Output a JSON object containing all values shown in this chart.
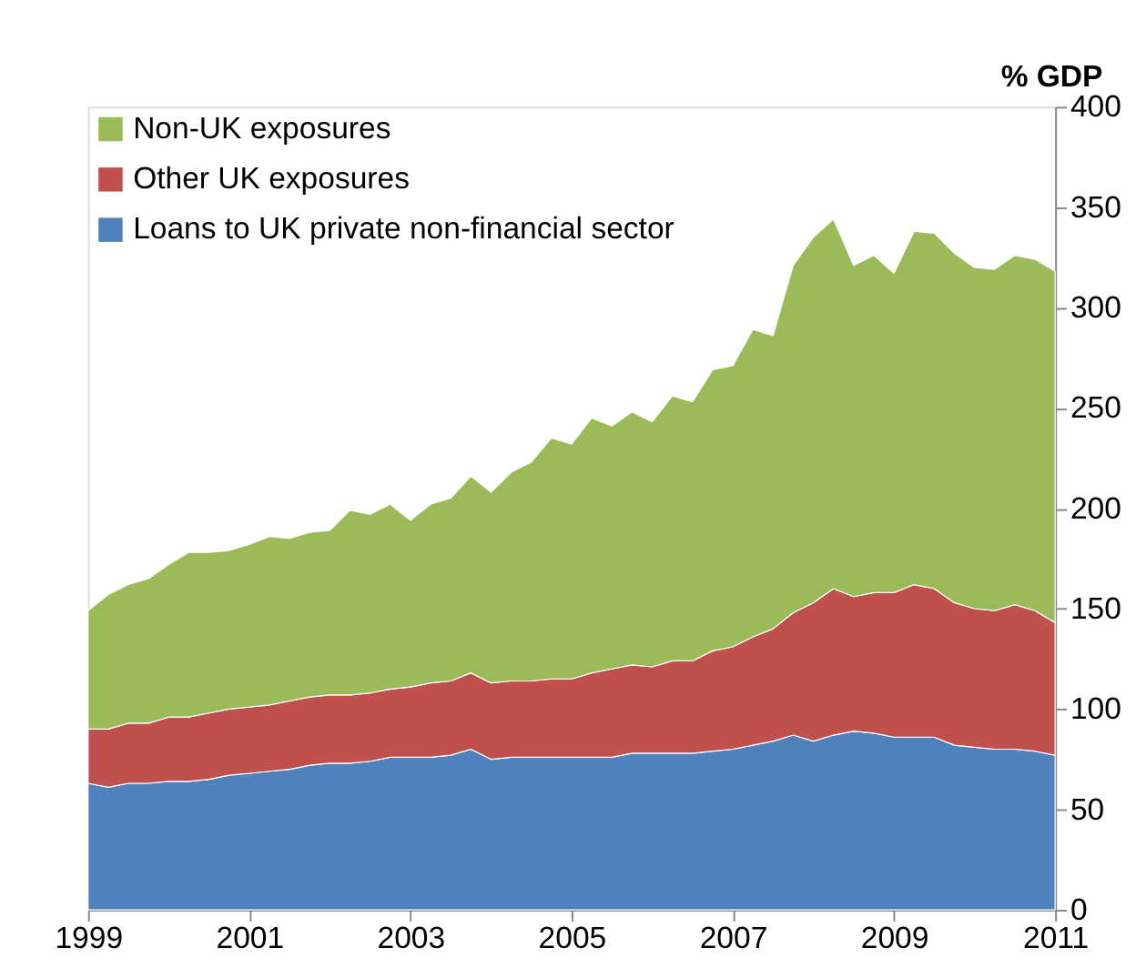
{
  "chart_data": {
    "type": "area",
    "stacked": true,
    "ylabel": "% GDP",
    "x": [
      1999,
      1999.25,
      1999.5,
      1999.75,
      2000,
      2000.25,
      2000.5,
      2000.75,
      2001,
      2001.25,
      2001.5,
      2001.75,
      2002,
      2002.25,
      2002.5,
      2002.75,
      2003,
      2003.25,
      2003.5,
      2003.75,
      2004,
      2004.25,
      2004.5,
      2004.75,
      2005,
      2005.25,
      2005.5,
      2005.75,
      2006,
      2006.25,
      2006.5,
      2006.75,
      2007,
      2007.25,
      2007.5,
      2007.75,
      2008,
      2008.25,
      2008.5,
      2008.75,
      2009,
      2009.25,
      2009.5,
      2009.75,
      2010,
      2010.25,
      2010.5,
      2010.75,
      2011
    ],
    "series": [
      {
        "name": "Loans to UK private non-financial sector",
        "color": "#4f81bd",
        "values": [
          63,
          61,
          63,
          63,
          64,
          64,
          65,
          67,
          68,
          69,
          70,
          72,
          73,
          73,
          74,
          76,
          76,
          76,
          77,
          80,
          75,
          76,
          76,
          76,
          76,
          76,
          76,
          78,
          78,
          78,
          78,
          79,
          80,
          82,
          84,
          87,
          84,
          87,
          89,
          88,
          86,
          86,
          86,
          82,
          81,
          80,
          80,
          79,
          77
        ]
      },
      {
        "name": "Other UK exposures",
        "color": "#c0504d",
        "values": [
          27,
          29,
          30,
          30,
          32,
          32,
          33,
          33,
          33,
          33,
          34,
          34,
          34,
          34,
          34,
          34,
          35,
          37,
          37,
          38,
          38,
          38,
          38,
          39,
          39,
          42,
          44,
          44,
          43,
          46,
          46,
          50,
          51,
          54,
          56,
          61,
          69,
          73,
          67,
          70,
          72,
          76,
          74,
          71,
          69,
          69,
          72,
          70,
          66
        ]
      },
      {
        "name": "Non-UK exposures",
        "color": "#9bbb59",
        "values": [
          59,
          67,
          69,
          72,
          76,
          82,
          80,
          79,
          81,
          84,
          81,
          82,
          82,
          92,
          89,
          92,
          83,
          89,
          91,
          98,
          95,
          104,
          109,
          120,
          117,
          127,
          121,
          126,
          122,
          132,
          129,
          140,
          140,
          153,
          146,
          173,
          182,
          184,
          165,
          168,
          159,
          176,
          177,
          174,
          170,
          170,
          174,
          175,
          175
        ]
      }
    ],
    "xlim": [
      1999,
      2011
    ],
    "xticks": [
      1999,
      2001,
      2003,
      2005,
      2007,
      2009,
      2011
    ],
    "ylim": [
      0,
      400
    ],
    "yticks": [
      0,
      50,
      100,
      150,
      200,
      250,
      300,
      350,
      400
    ],
    "grid": false,
    "legend": "top left"
  }
}
